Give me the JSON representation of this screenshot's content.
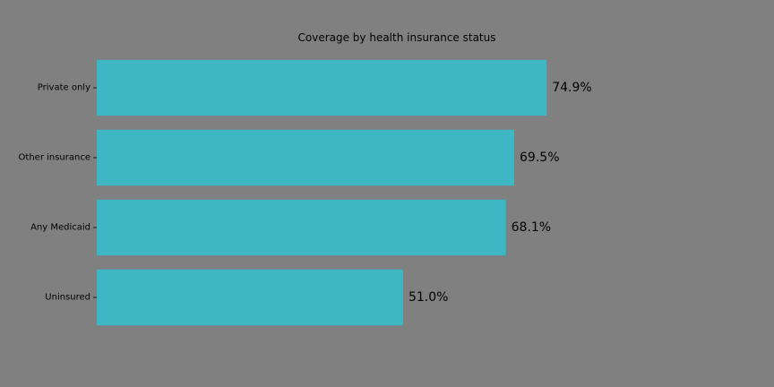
{
  "chart_data": {
    "type": "bar",
    "orientation": "horizontal",
    "title": "Coverage by health insurance status",
    "xlabel": "",
    "ylabel": "",
    "categories": [
      "Private only",
      "Other insurance",
      "Any Medicaid",
      "Uninsured"
    ],
    "values": [
      74.9,
      69.5,
      68.1,
      51.0
    ],
    "value_labels": [
      "74.9%",
      "69.5%",
      "68.1%",
      "51.0%"
    ],
    "xlim": [
      0,
      112
    ],
    "grid": false,
    "legend": "none"
  },
  "colors": {
    "background": "#808080",
    "bar": "#3fb6c4",
    "text": "#000000"
  }
}
